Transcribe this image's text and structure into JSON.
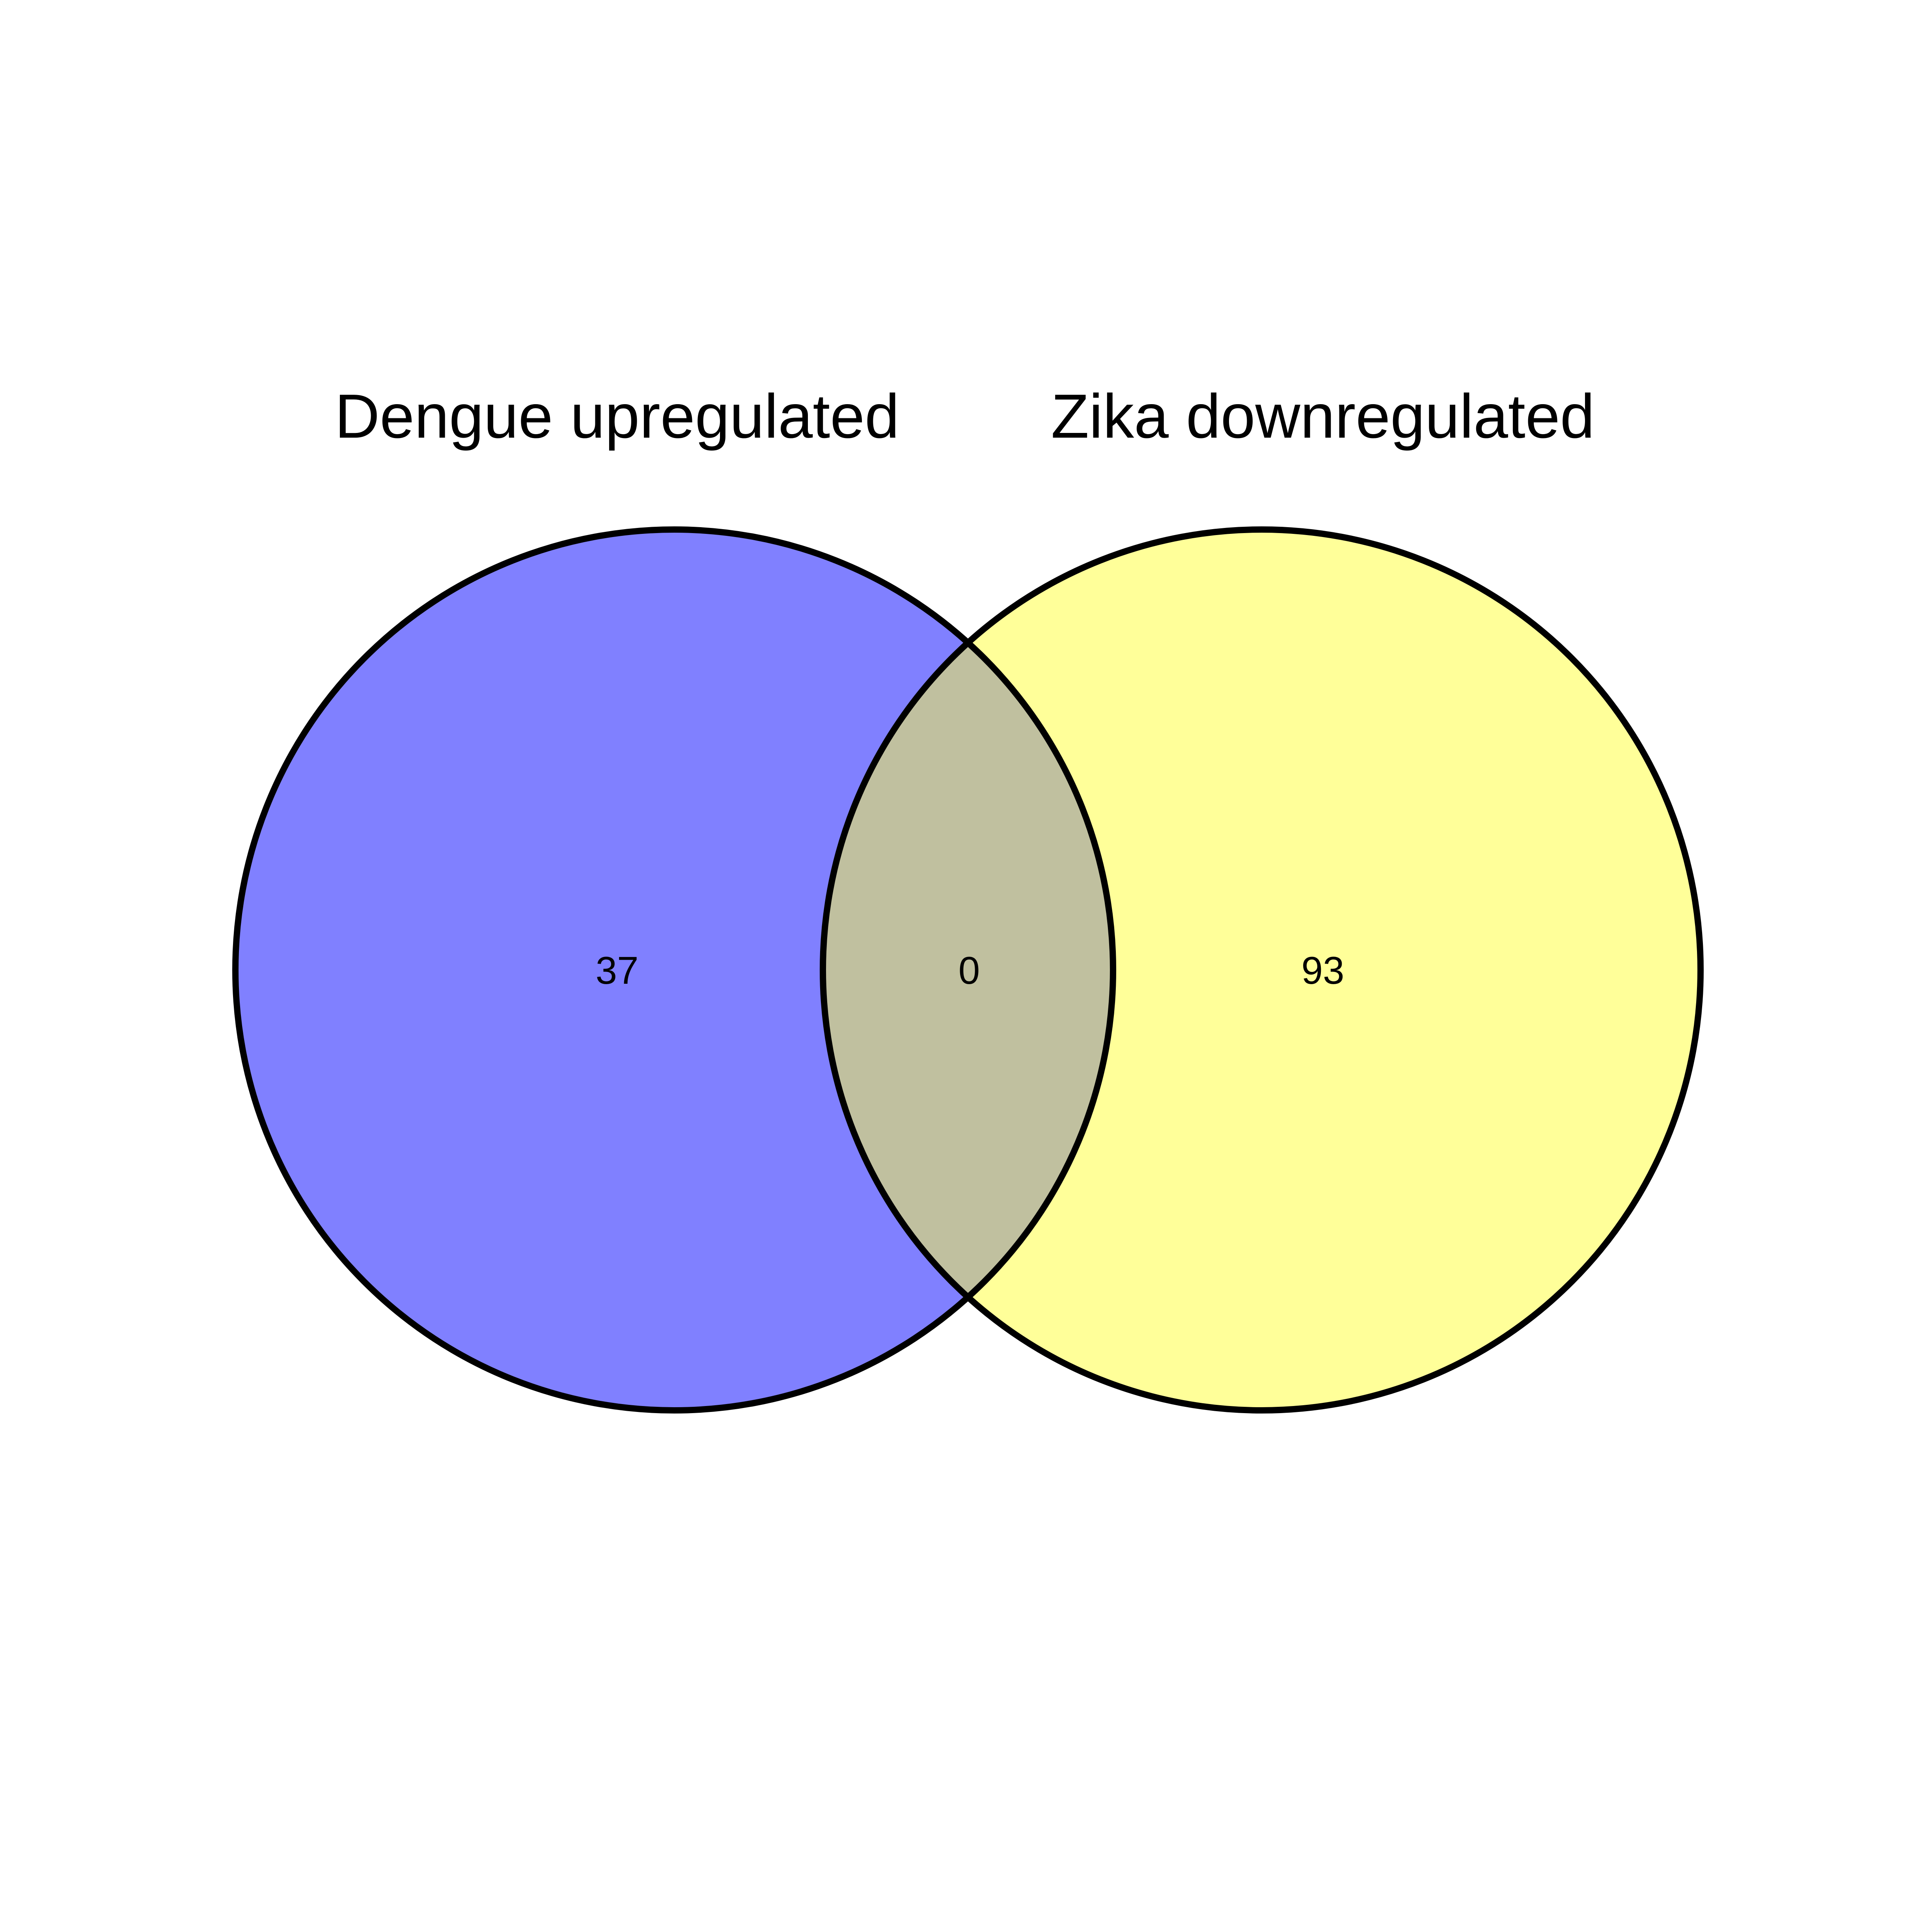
{
  "venn": {
    "sets": [
      {
        "name": "Dengue upregulated",
        "color": "#8080ff"
      },
      {
        "name": "Zika downregulated",
        "color": "#ffff99"
      }
    ],
    "overlap_color": "#c0c09f",
    "counts": {
      "only_a": "37",
      "intersection": "0",
      "only_b": "93"
    }
  }
}
